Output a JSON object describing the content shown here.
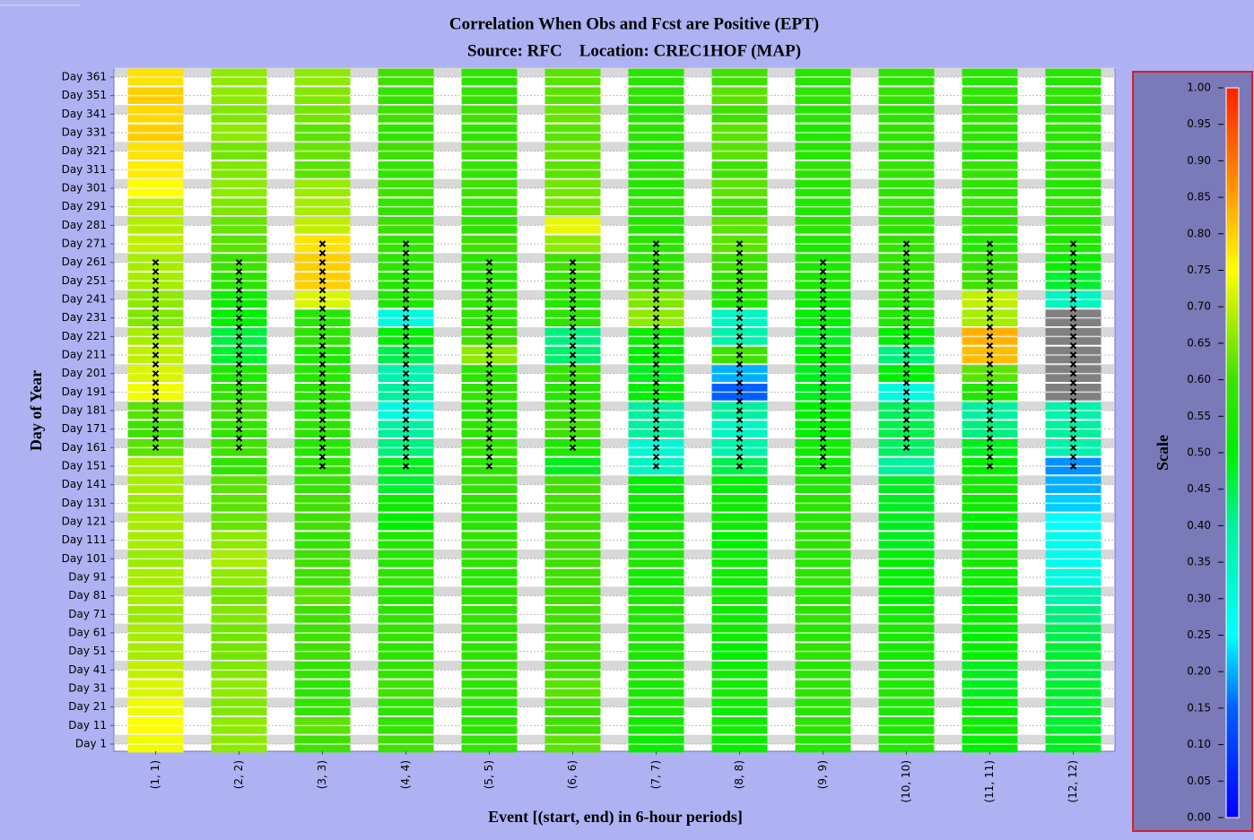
{
  "chart_data": {
    "type": "heatmap",
    "title": "Correlation When Obs and Fcst are Positive (EPT)",
    "subtitle": "Source: RFC    Location: CREC1HOF (MAP)",
    "x_label": "Event [(start, end) in 6-hour periods]",
    "y_label": "Day of Year",
    "colorbar_label": "Scale",
    "categories": [
      "(1, 1)",
      "(2, 2)",
      "(3, 3)",
      "(4, 4)",
      "(5, 5)",
      "(6, 6)",
      "(7, 7)",
      "(8, 8)",
      "(9, 9)",
      "(10, 10)",
      "(11, 11)",
      "(12, 12)"
    ],
    "y_categories": [
      "Day 1",
      "Day 11",
      "Day 21",
      "Day 31",
      "Day 41",
      "Day 51",
      "Day 61",
      "Day 71",
      "Day 81",
      "Day 91",
      "Day 101",
      "Day 111",
      "Day 121",
      "Day 131",
      "Day 141",
      "Day 151",
      "Day 161",
      "Day 171",
      "Day 181",
      "Day 191",
      "Day 201",
      "Day 211",
      "Day 221",
      "Day 231",
      "Day 241",
      "Day 251",
      "Day 261",
      "Day 271",
      "Day 281",
      "Day 291",
      "Day 301",
      "Day 311",
      "Day 321",
      "Day 331",
      "Day 341",
      "Day 351",
      "Day 361"
    ],
    "values": [
      [
        0.74,
        0.75,
        0.74,
        0.72,
        0.7,
        0.68,
        0.68,
        0.67,
        0.68,
        0.68,
        0.67,
        0.68,
        0.68,
        0.67,
        0.68,
        0.68,
        0.62,
        0.6,
        0.62,
        0.74,
        0.72,
        0.7,
        0.68,
        0.65,
        0.66,
        0.68,
        0.68,
        0.7,
        0.69,
        0.7,
        0.75,
        0.77,
        0.78,
        0.8,
        0.79,
        0.8,
        0.78
      ],
      [
        0.66,
        0.66,
        0.65,
        0.66,
        0.65,
        0.64,
        0.64,
        0.65,
        0.64,
        0.66,
        0.68,
        0.66,
        0.63,
        0.62,
        0.62,
        0.58,
        0.6,
        0.58,
        0.6,
        0.58,
        0.55,
        0.47,
        0.46,
        0.5,
        0.52,
        0.57,
        0.6,
        0.62,
        0.63,
        0.65,
        0.66,
        0.65,
        0.64,
        0.66,
        0.65,
        0.66,
        0.66
      ],
      [
        0.6,
        0.62,
        0.58,
        0.57,
        0.58,
        0.6,
        0.6,
        0.6,
        0.62,
        0.6,
        0.6,
        0.58,
        0.6,
        0.6,
        0.58,
        0.57,
        0.56,
        0.57,
        0.56,
        0.57,
        0.56,
        0.55,
        0.57,
        0.56,
        0.72,
        0.8,
        0.8,
        0.78,
        0.7,
        0.68,
        0.67,
        0.62,
        0.63,
        0.62,
        0.64,
        0.65,
        0.66
      ],
      [
        0.6,
        0.58,
        0.57,
        0.6,
        0.58,
        0.57,
        0.58,
        0.57,
        0.56,
        0.57,
        0.56,
        0.55,
        0.5,
        0.52,
        0.47,
        0.48,
        0.42,
        0.4,
        0.3,
        0.4,
        0.38,
        0.45,
        0.5,
        0.3,
        0.55,
        0.56,
        0.57,
        0.58,
        0.59,
        0.58,
        0.6,
        0.58,
        0.6,
        0.58,
        0.6,
        0.58,
        0.6
      ],
      [
        0.58,
        0.57,
        0.56,
        0.57,
        0.58,
        0.57,
        0.57,
        0.58,
        0.57,
        0.56,
        0.57,
        0.58,
        0.56,
        0.57,
        0.58,
        0.57,
        0.58,
        0.57,
        0.56,
        0.58,
        0.57,
        0.66,
        0.6,
        0.57,
        0.58,
        0.56,
        0.57,
        0.6,
        0.57,
        0.58,
        0.6,
        0.58,
        0.6,
        0.58,
        0.6,
        0.58,
        0.57
      ],
      [
        0.62,
        0.6,
        0.6,
        0.62,
        0.6,
        0.6,
        0.6,
        0.6,
        0.6,
        0.6,
        0.6,
        0.6,
        0.6,
        0.6,
        0.6,
        0.48,
        0.55,
        0.6,
        0.58,
        0.56,
        0.58,
        0.43,
        0.42,
        0.57,
        0.56,
        0.58,
        0.6,
        0.66,
        0.73,
        0.64,
        0.64,
        0.62,
        0.63,
        0.62,
        0.63,
        0.62,
        0.62
      ],
      [
        0.52,
        0.53,
        0.54,
        0.54,
        0.55,
        0.54,
        0.55,
        0.55,
        0.54,
        0.53,
        0.55,
        0.54,
        0.53,
        0.52,
        0.5,
        0.35,
        0.32,
        0.4,
        0.4,
        0.5,
        0.48,
        0.5,
        0.52,
        0.66,
        0.65,
        0.6,
        0.57,
        0.57,
        0.56,
        0.57,
        0.56,
        0.57,
        0.56,
        0.57,
        0.56,
        0.57,
        0.56
      ],
      [
        0.52,
        0.53,
        0.52,
        0.53,
        0.52,
        0.5,
        0.52,
        0.52,
        0.53,
        0.52,
        0.52,
        0.5,
        0.52,
        0.52,
        0.5,
        0.45,
        0.38,
        0.35,
        0.4,
        0.15,
        0.2,
        0.6,
        0.38,
        0.35,
        0.55,
        0.58,
        0.6,
        0.62,
        0.62,
        0.6,
        0.62,
        0.6,
        0.62,
        0.62,
        0.6,
        0.62,
        0.6
      ],
      [
        0.56,
        0.57,
        0.56,
        0.57,
        0.56,
        0.57,
        0.56,
        0.57,
        0.56,
        0.57,
        0.56,
        0.57,
        0.56,
        0.56,
        0.55,
        0.52,
        0.52,
        0.5,
        0.5,
        0.48,
        0.48,
        0.5,
        0.48,
        0.5,
        0.52,
        0.54,
        0.55,
        0.55,
        0.56,
        0.55,
        0.56,
        0.57,
        0.56,
        0.55,
        0.56,
        0.57,
        0.56
      ],
      [
        0.56,
        0.55,
        0.54,
        0.55,
        0.54,
        0.53,
        0.54,
        0.53,
        0.5,
        0.5,
        0.5,
        0.48,
        0.48,
        0.48,
        0.48,
        0.4,
        0.44,
        0.45,
        0.44,
        0.3,
        0.5,
        0.42,
        0.5,
        0.55,
        0.56,
        0.57,
        0.58,
        0.58,
        0.57,
        0.58,
        0.57,
        0.58,
        0.57,
        0.58,
        0.57,
        0.58,
        0.57
      ],
      [
        0.5,
        0.52,
        0.5,
        0.48,
        0.48,
        0.5,
        0.5,
        0.52,
        0.5,
        0.52,
        0.53,
        0.52,
        0.5,
        0.52,
        0.53,
        0.5,
        0.48,
        0.42,
        0.4,
        0.55,
        0.62,
        0.82,
        0.83,
        0.68,
        0.7,
        0.6,
        0.58,
        0.56,
        0.57,
        0.58,
        0.57,
        0.58,
        0.56,
        0.57,
        0.58,
        0.57,
        0.56
      ],
      [
        0.48,
        0.47,
        0.47,
        0.47,
        0.46,
        0.47,
        0.45,
        0.42,
        0.38,
        0.3,
        0.28,
        0.28,
        0.25,
        0.22,
        0.2,
        0.18,
        0.38,
        0.4,
        0.38,
        null,
        null,
        null,
        null,
        null,
        0.35,
        0.47,
        0.52,
        0.55,
        0.56,
        0.57,
        0.56,
        0.57,
        0.56,
        0.57,
        0.56,
        0.57,
        0.56
      ]
    ],
    "marked": [
      [
        161,
        261
      ],
      [
        161,
        261
      ],
      [
        151,
        271
      ],
      [
        151,
        271
      ],
      [
        151,
        261
      ],
      [
        161,
        261
      ],
      [
        151,
        271
      ],
      [
        151,
        271
      ],
      [
        151,
        261
      ],
      [
        161,
        271
      ],
      [
        151,
        271
      ],
      [
        151,
        271
      ]
    ],
    "day_range": [
      1,
      361
    ],
    "null_color": "#808080",
    "zlim": [
      0,
      1
    ],
    "zticks": [
      {
        "value": 0,
        "label": "0.00"
      },
      {
        "value": 0.05,
        "label": "0.05"
      },
      {
        "value": 0.1,
        "label": "0.10"
      },
      {
        "value": 0.15,
        "label": "0.15"
      },
      {
        "value": 0.2,
        "label": "0.20"
      },
      {
        "value": 0.25,
        "label": "0.25"
      },
      {
        "value": 0.3,
        "label": "0.30"
      },
      {
        "value": 0.35,
        "label": "0.35"
      },
      {
        "value": 0.4,
        "label": "0.40"
      },
      {
        "value": 0.45,
        "label": "0.45"
      },
      {
        "value": 0.5,
        "label": "0.50"
      },
      {
        "value": 0.55,
        "label": "0.55"
      },
      {
        "value": 0.6,
        "label": "0.60"
      },
      {
        "value": 0.65,
        "label": "0.65"
      },
      {
        "value": 0.7,
        "label": "0.70"
      },
      {
        "value": 0.75,
        "label": "0.75"
      },
      {
        "value": 0.8,
        "label": "0.80"
      },
      {
        "value": 0.85,
        "label": "0.85"
      },
      {
        "value": 0.9,
        "label": "0.90"
      },
      {
        "value": 0.95,
        "label": "0.95"
      },
      {
        "value": 1,
        "label": "1.00"
      }
    ],
    "colormap": [
      {
        "value": 0,
        "color": "#0000ff"
      },
      {
        "value": 0.15,
        "color": "#0060ff"
      },
      {
        "value": 0.25,
        "color": "#00ffff"
      },
      {
        "value": 0.4,
        "color": "#00f0a0"
      },
      {
        "value": 0.5,
        "color": "#00ee00"
      },
      {
        "value": 0.6,
        "color": "#40e000"
      },
      {
        "value": 0.7,
        "color": "#c0f000"
      },
      {
        "value": 0.75,
        "color": "#ffff00"
      },
      {
        "value": 0.85,
        "color": "#ffa000"
      },
      {
        "value": 1,
        "color": "#ff2000"
      }
    ]
  }
}
